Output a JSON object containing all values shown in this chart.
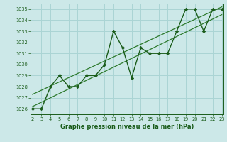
{
  "x": [
    2,
    3,
    4,
    5,
    6,
    7,
    8,
    9,
    10,
    11,
    12,
    13,
    14,
    15,
    16,
    17,
    18,
    19,
    20,
    21,
    22,
    23
  ],
  "y": [
    1026.0,
    1026.0,
    1028.0,
    1029.0,
    1028.0,
    1028.0,
    1029.0,
    1029.0,
    1030.0,
    1033.0,
    1031.5,
    1028.8,
    1031.5,
    1031.0,
    1031.0,
    1031.0,
    1033.0,
    1035.0,
    1035.0,
    1033.0,
    1035.0,
    1035.0
  ],
  "trend1_x": [
    2,
    23
  ],
  "trend1_y": [
    1026.2,
    1034.5
  ],
  "trend2_x": [
    2,
    23
  ],
  "trend2_y": [
    1027.3,
    1035.2
  ],
  "bg_color": "#cce8e8",
  "grid_color": "#aad4d4",
  "line_color": "#1a5c1a",
  "trend_color": "#2d7a2d",
  "xlabel": "Graphe pression niveau de la mer (hPa)",
  "xlim": [
    2,
    23
  ],
  "ylim": [
    1025.5,
    1035.5
  ],
  "yticks": [
    1026,
    1027,
    1028,
    1029,
    1030,
    1031,
    1032,
    1033,
    1034,
    1035
  ],
  "xticks": [
    2,
    3,
    4,
    5,
    6,
    7,
    8,
    9,
    10,
    11,
    12,
    13,
    14,
    15,
    16,
    17,
    18,
    19,
    20,
    21,
    22,
    23
  ]
}
